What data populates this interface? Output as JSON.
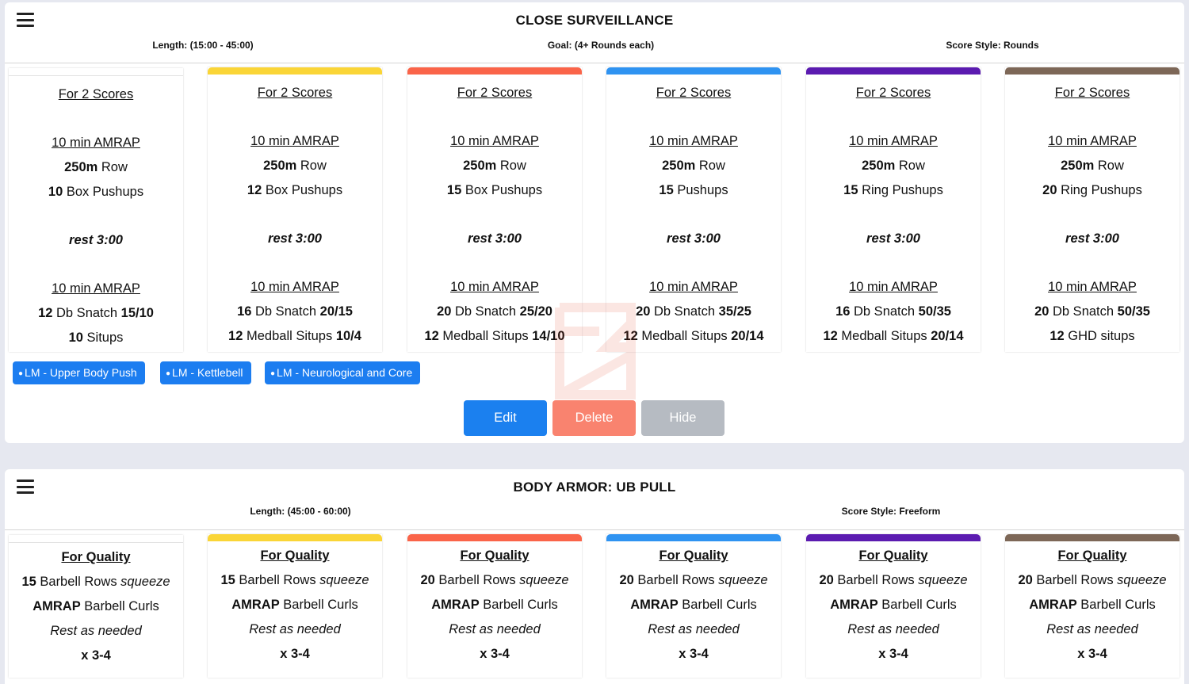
{
  "colors": {
    "card_bars": [
      "#ffffff",
      "#fad537",
      "#fa6449",
      "#2f93f1",
      "#5b1bb0",
      "#7d6757"
    ],
    "tag_bg": "#1c7df0",
    "edit": "#1b80ef",
    "delete": "#f9836f",
    "hide": "#b6bbc2"
  },
  "panel1": {
    "menu_icon": "hamburger-menu-icon",
    "title": "CLOSE SURVEILLANCE",
    "length": "Length: (15:00 - 45:00)",
    "goal": "Goal: (4+ Rounds each)",
    "score_style": "Score Style: Rounds",
    "cards": [
      {
        "score": "For 2 Scores",
        "amrap1": "10 min AMRAP ",
        "row_n": "250m",
        "row_t": " Row",
        "push_n": "10",
        "push_t": " Box Pushups",
        "rest": "rest 3:00",
        "amrap2": "10 min AMRAP ",
        "snatch_n": "12",
        "snatch_t": " Db Snatch ",
        "snatch_w": "15/10",
        "sit_n": "10",
        "sit_t": " Situps",
        "sit_w": ""
      },
      {
        "score": "For 2 Scores",
        "amrap1": "10 min AMRAP ",
        "row_n": "250m",
        "row_t": " Row",
        "push_n": "12",
        "push_t": " Box Pushups",
        "rest": "rest 3:00",
        "amrap2": "10 min AMRAP ",
        "snatch_n": "16",
        "snatch_t": " Db Snatch ",
        "snatch_w": "20/15",
        "sit_n": "12",
        "sit_t": " Medball Situps ",
        "sit_w": "10/4"
      },
      {
        "score": "For 2 Scores",
        "amrap1": "10 min AMRAP ",
        "row_n": "250m",
        "row_t": " Row",
        "push_n": "15",
        "push_t": " Box Pushups",
        "rest": "rest 3:00",
        "amrap2": "10 min AMRAP ",
        "snatch_n": "20",
        "snatch_t": " Db Snatch ",
        "snatch_w": "25/20",
        "sit_n": "12",
        "sit_t": " Medball Situps ",
        "sit_w": "14/10"
      },
      {
        "score": "For 2 Scores",
        "amrap1": "10 min AMRAP ",
        "row_n": "250m",
        "row_t": " Row",
        "push_n": "15",
        "push_t": " Pushups",
        "rest": "rest 3:00",
        "amrap2": "10 min AMRAP ",
        "snatch_n": "20",
        "snatch_t": " Db Snatch ",
        "snatch_w": "35/25",
        "sit_n": "12",
        "sit_t": " Medball Situps ",
        "sit_w": "20/14"
      },
      {
        "score": "For 2 Scores",
        "amrap1": "10 min AMRAP ",
        "row_n": "250m",
        "row_t": " Row",
        "push_n": "15",
        "push_t": " Ring Pushups",
        "rest": "rest 3:00",
        "amrap2": "10 min AMRAP ",
        "snatch_n": "16",
        "snatch_t": " Db Snatch ",
        "snatch_w": "50/35",
        "sit_n": "12",
        "sit_t": " Medball Situps ",
        "sit_w": "20/14"
      },
      {
        "score": "For 2 Scores",
        "amrap1": "10 min AMRAP ",
        "row_n": "250m",
        "row_t": " Row",
        "push_n": "20",
        "push_t": " Ring Pushups",
        "rest": "rest 3:00",
        "amrap2": "10 min AMRAP ",
        "snatch_n": "20",
        "snatch_t": " Db Snatch ",
        "snatch_w": "50/35",
        "sit_n": "12",
        "sit_t": " GHD situps",
        "sit_w": ""
      }
    ],
    "tags": [
      "LM - Upper Body Push",
      "LM - Kettlebell",
      "LM - Neurological and Core"
    ],
    "buttons": {
      "edit": "Edit",
      "delete": "Delete",
      "hide": "Hide"
    }
  },
  "panel2": {
    "menu_icon": "hamburger-menu-icon",
    "title": "BODY ARMOR: UB PULL",
    "length": "Length: (45:00 - 60:00)",
    "score_style": "Score Style: Freeform",
    "cards": [
      {
        "quality": "For Quality",
        "rows_n": "15",
        "rows_t": " Barbell Rows ",
        "rows_i": "squeeze",
        "curls_n": "AMRAP",
        "curls_t": " Barbell Curls",
        "rest": "Rest as needed",
        "sets": "x 3-4"
      },
      {
        "quality": "For Quality",
        "rows_n": "15",
        "rows_t": " Barbell Rows ",
        "rows_i": "squeeze",
        "curls_n": "AMRAP",
        "curls_t": " Barbell Curls",
        "rest": "Rest as needed",
        "sets": "x 3-4"
      },
      {
        "quality": "For Quality",
        "rows_n": "20",
        "rows_t": " Barbell Rows ",
        "rows_i": "squeeze",
        "curls_n": "AMRAP",
        "curls_t": " Barbell Curls",
        "rest": "Rest as needed",
        "sets": "x 3-4"
      },
      {
        "quality": "For Quality",
        "rows_n": "20",
        "rows_t": " Barbell Rows ",
        "rows_i": "squeeze",
        "curls_n": "AMRAP",
        "curls_t": " Barbell Curls",
        "rest": "Rest as needed",
        "sets": "x 3-4"
      },
      {
        "quality": "For Quality",
        "rows_n": "20",
        "rows_t": " Barbell Rows ",
        "rows_i": "squeeze",
        "curls_n": "AMRAP",
        "curls_t": " Barbell Curls",
        "rest": "Rest as needed",
        "sets": "x 3-4"
      },
      {
        "quality": "For Quality",
        "rows_n": "20",
        "rows_t": " Barbell Rows ",
        "rows_i": "squeeze",
        "curls_n": "AMRAP",
        "curls_t": " Barbell Curls",
        "rest": "Rest as needed",
        "sets": "x 3-4"
      }
    ]
  }
}
